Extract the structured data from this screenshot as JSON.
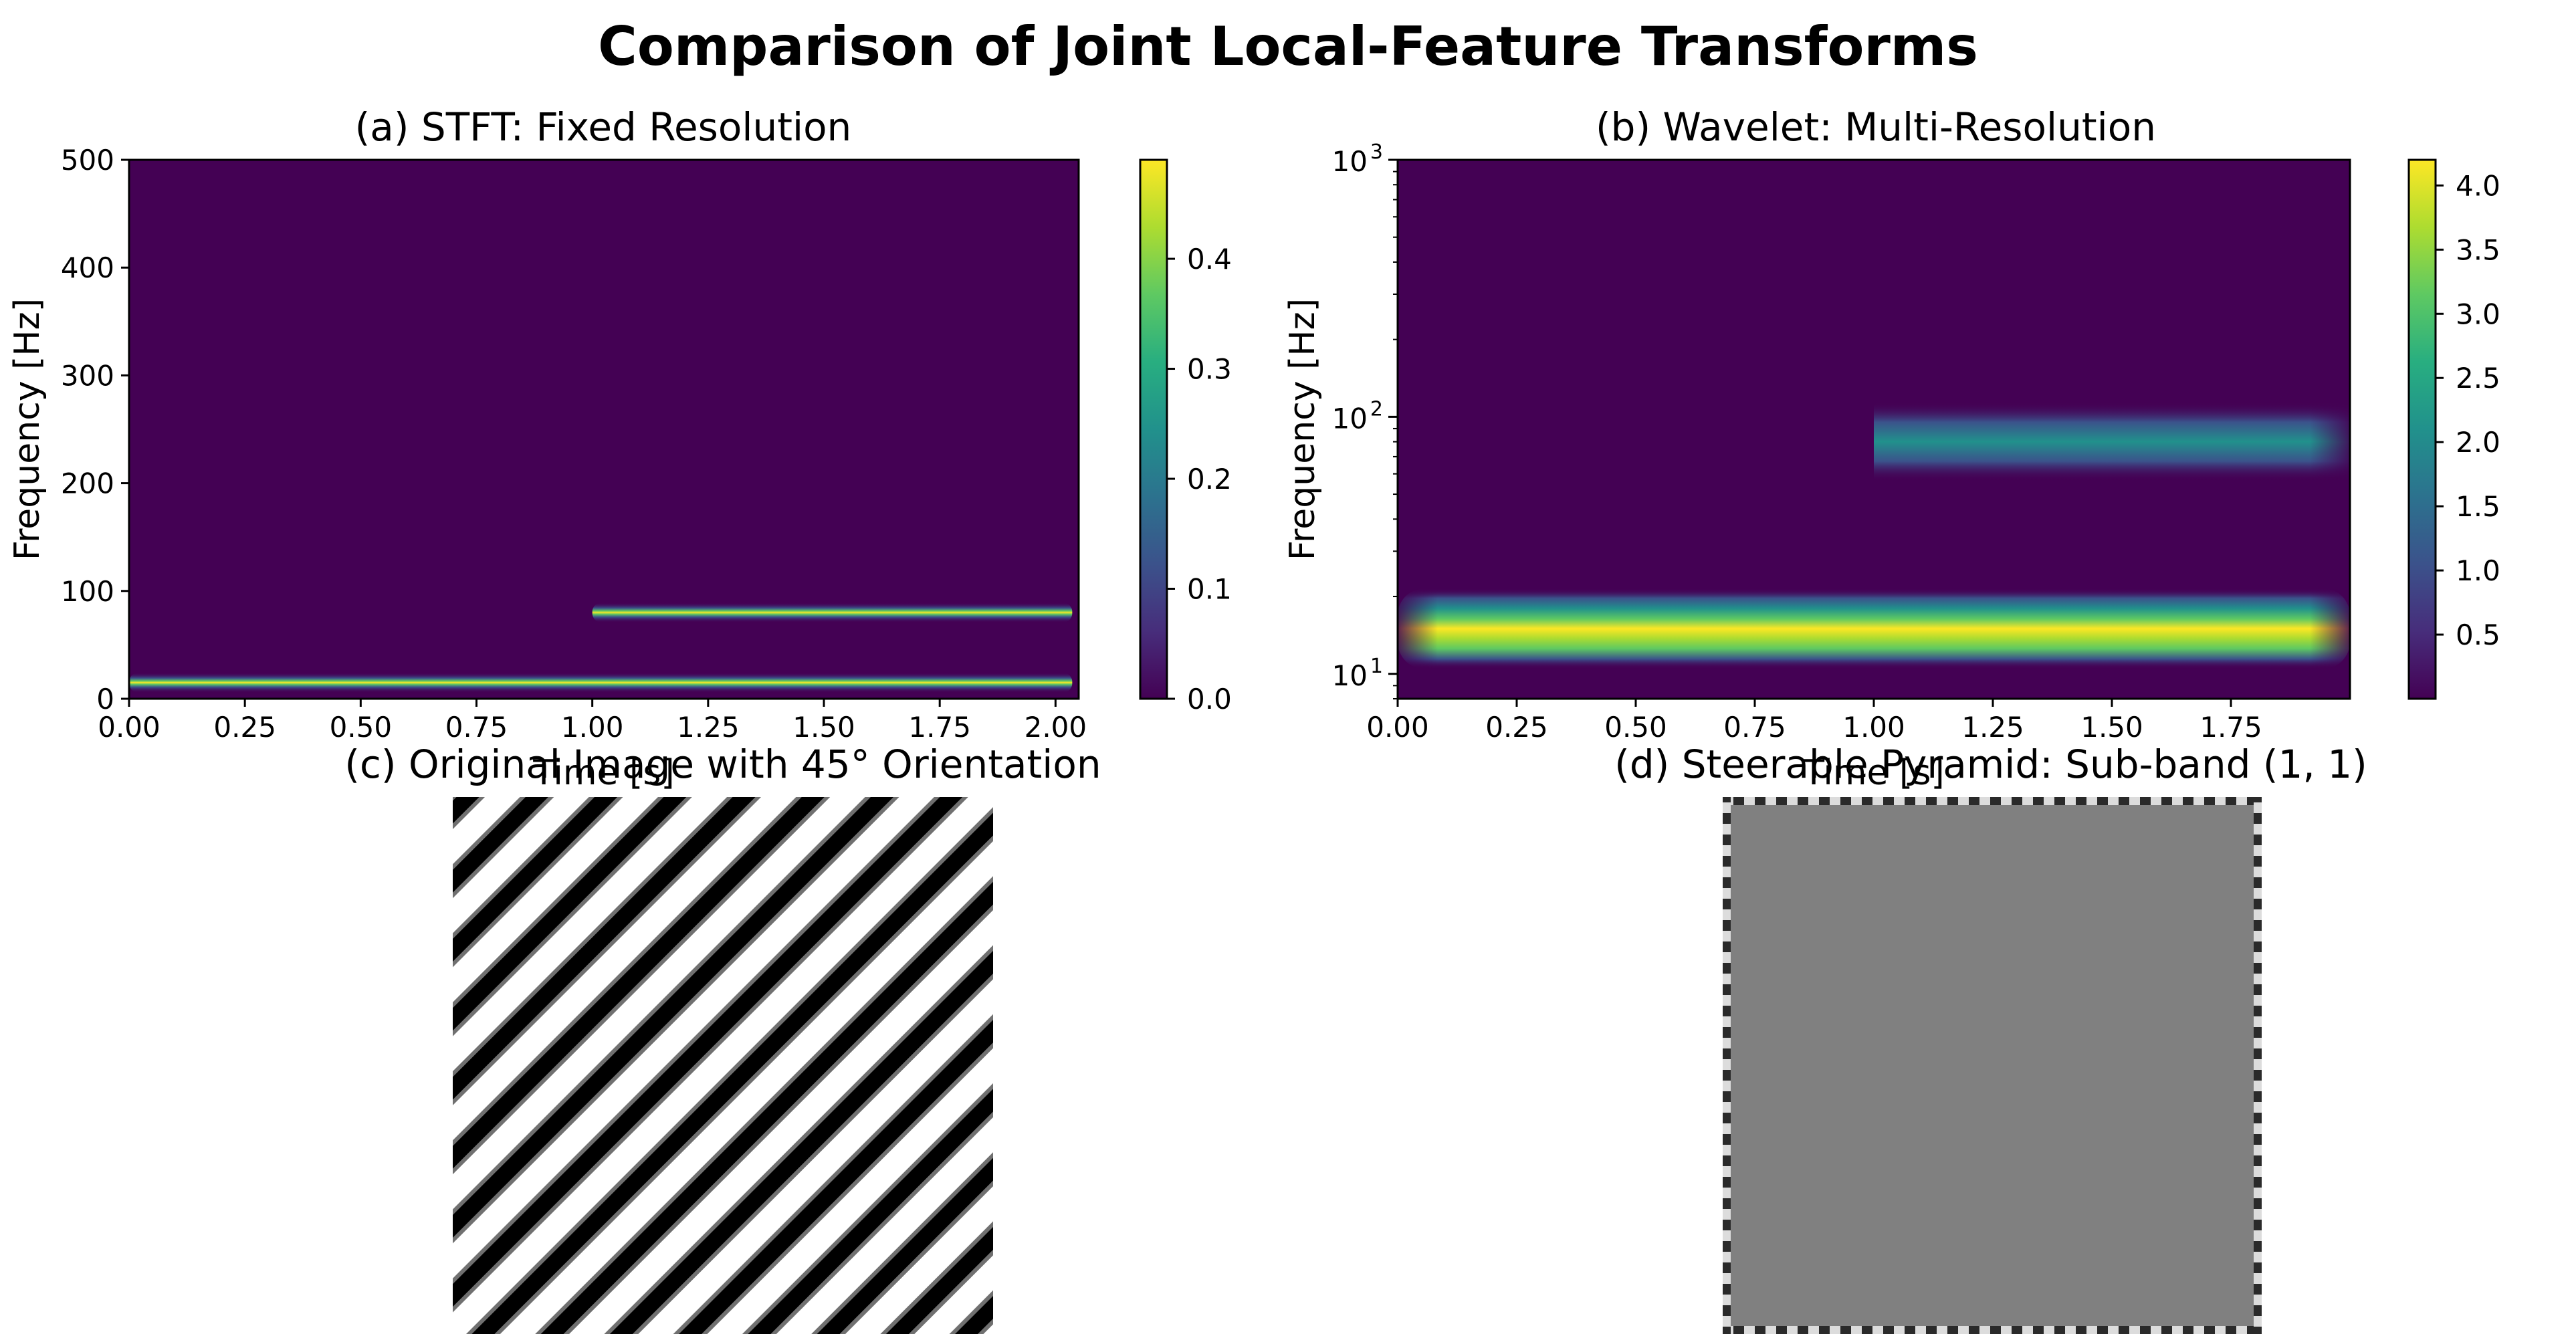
{
  "figure": {
    "title": "Comparison of Joint Local-Feature Transforms"
  },
  "chart_data": [
    {
      "id": "a",
      "type": "heatmap",
      "title": "(a) STFT: Fixed Resolution",
      "xlabel": "Time [s]",
      "ylabel": "Frequency [Hz]",
      "xlim": [
        0.0,
        2.05
      ],
      "ylim": [
        0,
        500
      ],
      "xticks": [
        "0.00",
        "0.25",
        "0.50",
        "0.75",
        "1.00",
        "1.25",
        "1.50",
        "1.75",
        "2.00"
      ],
      "yticks": [
        "0",
        "100",
        "200",
        "300",
        "400",
        "500"
      ],
      "colormap": "viridis",
      "colorbar": {
        "min": 0.0,
        "max": 0.49,
        "ticks": [
          "0.0",
          "0.1",
          "0.2",
          "0.3",
          "0.4"
        ]
      },
      "bands": [
        {
          "freq": 15,
          "t_start": 0.0,
          "t_end": 2.0,
          "value": 0.47
        },
        {
          "freq": 80,
          "t_start": 1.0,
          "t_end": 2.0,
          "value": 0.49
        }
      ]
    },
    {
      "id": "b",
      "type": "heatmap",
      "title": "(b) Wavelet: Multi-Resolution",
      "xlabel": "Time [s]",
      "ylabel": "Frequency [Hz]",
      "xscale": "linear",
      "yscale": "log",
      "xlim": [
        0.0,
        2.0
      ],
      "ylim": [
        8,
        1000
      ],
      "xticks": [
        "0.00",
        "0.25",
        "0.50",
        "0.75",
        "1.00",
        "1.25",
        "1.50",
        "1.75"
      ],
      "yticks": [
        {
          "base": "10",
          "exp": "1"
        },
        {
          "base": "10",
          "exp": "2"
        },
        {
          "base": "10",
          "exp": "3"
        }
      ],
      "colormap": "viridis",
      "colorbar": {
        "min": 0.0,
        "max": 4.2,
        "ticks": [
          "0.5",
          "1.0",
          "1.5",
          "2.0",
          "2.5",
          "3.0",
          "3.5",
          "4.0"
        ]
      },
      "bands": [
        {
          "freq": 15,
          "t_start": 0.0,
          "t_end": 2.0,
          "value": 4.2
        },
        {
          "freq": 80,
          "t_start": 1.0,
          "t_end": 2.0,
          "value": 2.1
        }
      ]
    },
    {
      "id": "c",
      "type": "image",
      "title": "(c) Original Image with 45° Orientation",
      "pattern": "sinusoidal grating oriented at 45 degrees",
      "stripes": 11
    },
    {
      "id": "d",
      "type": "image",
      "title": "(d) Steerable Pyramid: Sub-band (1, 1)",
      "pattern": "uniform gray field with checkered edge artifacts"
    }
  ]
}
